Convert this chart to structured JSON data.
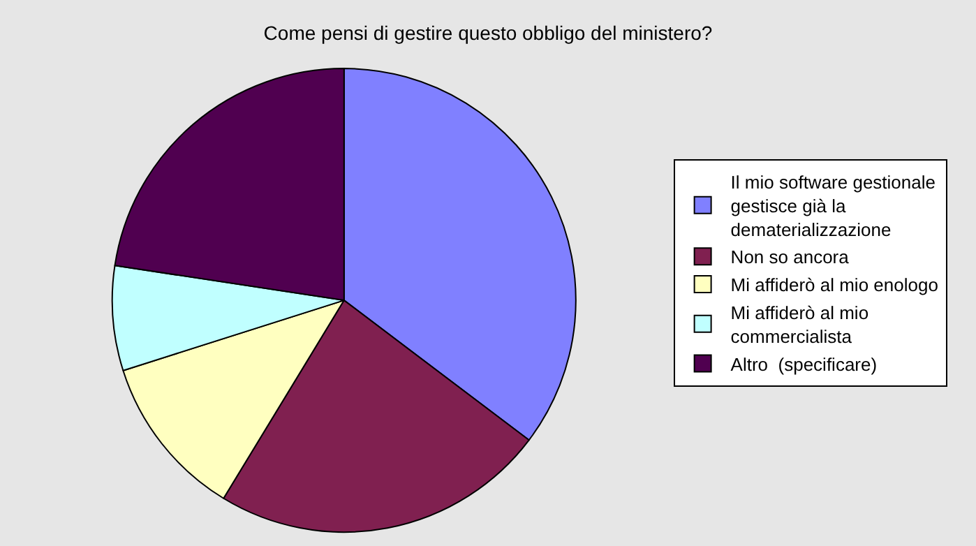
{
  "chart_data": {
    "type": "pie",
    "title": "Come pensi di gestire questo obbligo del ministero?",
    "categories": [
      "Il mio software gestionale gestisce già la dematerializzazione",
      "Non so ancora",
      "Mi affiderò al mio enologo",
      "Mi affiderò al mio commercialista",
      "Altro  (specificare)"
    ],
    "values": [
      35.3,
      23.4,
      11.4,
      7.3,
      22.6
    ],
    "colors": [
      "#8080ff",
      "#802050",
      "#ffffc0",
      "#c0ffff",
      "#500050"
    ],
    "legend": "right"
  }
}
